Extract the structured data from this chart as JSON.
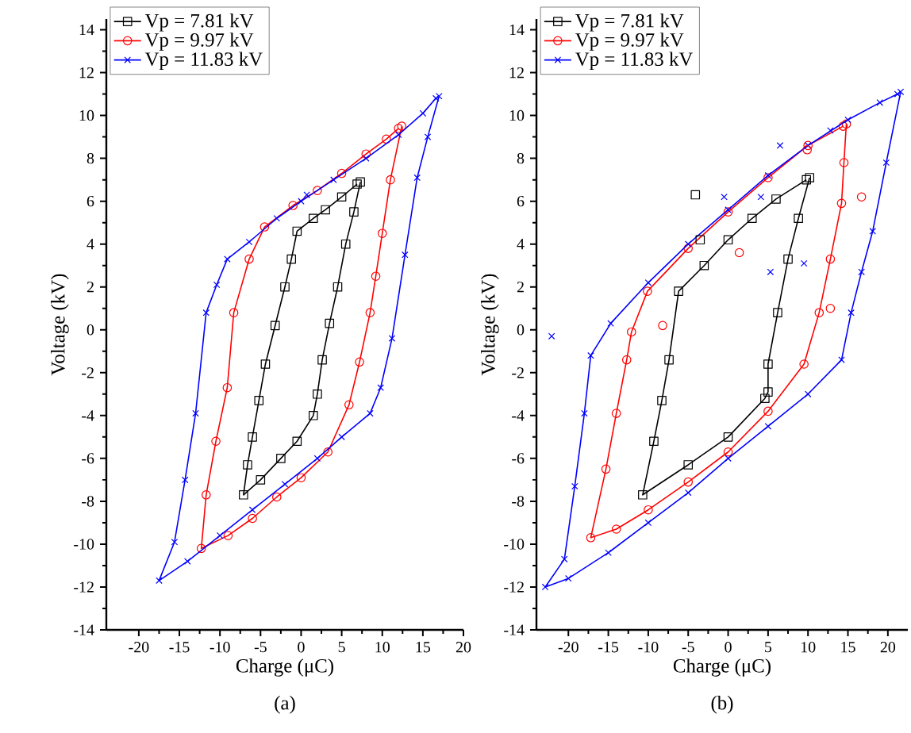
{
  "chart_data": [
    {
      "type": "line",
      "xlabel": "Charge (μC)",
      "ylabel": "Voltage (kV)",
      "annotations": [
        "(a)"
      ],
      "legend": "top left",
      "xlim": [
        -24,
        20
      ],
      "ylim": [
        -14,
        14.5
      ],
      "xticks": [
        -20,
        -15,
        -10,
        -5,
        0,
        5,
        10,
        15,
        20
      ],
      "yticks": [
        -14,
        -12,
        -10,
        -8,
        -6,
        -4,
        -2,
        0,
        2,
        4,
        6,
        8,
        10,
        12,
        14
      ],
      "series": [
        {
          "name": "Vp = 7.81 kV",
          "color": "#000000",
          "marker": "square",
          "x": [
            7.3,
            6.5,
            5.5,
            4.5,
            3.5,
            2.6,
            2,
            1.5,
            -0.5,
            -2.5,
            -5,
            -7.1,
            -6.6,
            -6,
            -5.2,
            -4.4,
            -3.2,
            -2,
            -1.2,
            -0.5,
            1.5,
            3,
            5,
            6.9
          ],
          "values": [
            6.9,
            5.5,
            4,
            2,
            0.3,
            -1.4,
            -3,
            -4,
            -5.2,
            -6,
            -7,
            -7.7,
            -6.3,
            -5,
            -3.3,
            -1.6,
            0.2,
            2,
            3.3,
            4.6,
            5.2,
            5.6,
            6.2,
            6.8
          ]
        },
        {
          "name": "Vp = 9.97 kV",
          "color": "#ff0000",
          "marker": "circle",
          "x": [
            12.4,
            11,
            10,
            9.2,
            8.5,
            7.2,
            5.9,
            3.3,
            0,
            -3,
            -6,
            -9,
            -12.3,
            -11.7,
            -10.5,
            -9.1,
            -8.3,
            -6.4,
            -4.5,
            -1,
            2,
            5,
            8,
            10.5,
            12
          ],
          "values": [
            9.5,
            7,
            4.5,
            2.5,
            0.8,
            -1.5,
            -3.5,
            -5.7,
            -6.9,
            -7.8,
            -8.8,
            -9.6,
            -10.2,
            -7.7,
            -5.2,
            -2.7,
            0.8,
            3.3,
            4.8,
            5.8,
            6.5,
            7.3,
            8.2,
            8.9,
            9.4
          ]
        },
        {
          "name": "Vp = 11.83 kV",
          "color": "#0000ff",
          "marker": "cross",
          "x": [
            17,
            15.6,
            14.3,
            12.8,
            11.2,
            9.8,
            8.5,
            5,
            2,
            -2,
            -6,
            -10,
            -14,
            -17.5,
            -15.6,
            -14.3,
            -13,
            -11.7,
            -10.4,
            -9.1,
            -6.4,
            -3,
            0,
            4,
            8,
            12,
            15,
            16.6
          ],
          "values": [
            10.9,
            9,
            7.1,
            3.5,
            -0.4,
            -2.7,
            -3.9,
            -5,
            -6,
            -7.2,
            -8.4,
            -9.6,
            -10.8,
            -11.7,
            -9.9,
            -7,
            -3.9,
            0.8,
            2.1,
            3.3,
            4.1,
            5.2,
            6,
            7,
            8,
            9.1,
            10.1,
            10.8
          ]
        },
        {
          "type": "scatter",
          "color": "#0000ff",
          "marker": "cross",
          "x": [
            0.7
          ],
          "values": [
            6.3
          ]
        }
      ]
    },
    {
      "type": "line",
      "xlabel": "Charge (μC)",
      "ylabel": "Voltage (kV)",
      "annotations": [
        "(b)"
      ],
      "legend": "top left",
      "xlim": [
        -24,
        22.5
      ],
      "ylim": [
        -14,
        14.5
      ],
      "xticks": [
        -20,
        -15,
        -10,
        -5,
        0,
        5,
        10,
        15,
        20
      ],
      "yticks": [
        -14,
        -12,
        -10,
        -8,
        -6,
        -4,
        -2,
        0,
        2,
        4,
        6,
        8,
        10,
        12,
        14
      ],
      "series": [
        {
          "name": "Vp = 7.81 kV",
          "color": "#000000",
          "marker": "square",
          "x": [
            10.2,
            8.8,
            7.5,
            6.2,
            5,
            5,
            4.6,
            0,
            -5,
            -10.7,
            -9.3,
            -8.3,
            -7.4,
            -6.2,
            -3,
            0,
            3,
            6,
            9.8
          ],
          "values": [
            7.1,
            5.2,
            3.3,
            0.8,
            -1.6,
            -2.9,
            -3.2,
            -5,
            -6.3,
            -7.7,
            -5.2,
            -3.3,
            -1.4,
            1.8,
            3,
            4.2,
            5.2,
            6.1,
            7
          ]
        },
        {
          "name": "Vp = 9.97 kV",
          "color": "#ff0000",
          "marker": "circle",
          "x": [
            14.8,
            14.5,
            14.2,
            12.8,
            11.4,
            9.5,
            5,
            0,
            -5,
            -10,
            -14,
            -17.2,
            -15.3,
            -14,
            -12.7,
            -12.1,
            -10.1,
            -5,
            0,
            5,
            10,
            14.4
          ],
          "values": [
            9.6,
            7.8,
            5.9,
            3.3,
            0.8,
            -1.6,
            -3.8,
            -5.7,
            -7.1,
            -8.4,
            -9.3,
            -9.7,
            -6.5,
            -3.9,
            -1.4,
            -0.1,
            1.8,
            3.8,
            5.5,
            7.1,
            8.6,
            9.5
          ]
        },
        {
          "name": "Vp = 11.83 kV",
          "color": "#0000ff",
          "marker": "cross",
          "x": [
            21.6,
            19.8,
            18.1,
            16.7,
            15.4,
            14.2,
            10,
            5,
            0,
            -5,
            -10,
            -15,
            -20,
            -22.9,
            -20.5,
            -19.2,
            -18,
            -17.2,
            -14.7,
            -10,
            -5,
            0,
            5,
            10,
            15,
            19,
            21.2
          ],
          "values": [
            11.1,
            7.8,
            4.6,
            2.7,
            0.8,
            -1.4,
            -3,
            -4.5,
            -6,
            -7.6,
            -9,
            -10.4,
            -11.6,
            -12,
            -10.7,
            -7.3,
            -3.9,
            -1.2,
            0.3,
            2.2,
            4,
            5.6,
            7.2,
            8.6,
            9.8,
            10.6,
            11
          ]
        },
        {
          "type": "scatter",
          "color": "#000000",
          "marker": "square",
          "x": [
            -4.1,
            -3.5
          ],
          "values": [
            6.3,
            4.2
          ]
        },
        {
          "type": "scatter",
          "color": "#ff0000",
          "marker": "circle",
          "x": [
            -8.2,
            1.4,
            16.7,
            12.8,
            9.9
          ],
          "values": [
            0.2,
            3.6,
            6.2,
            1.0,
            8.4
          ]
        },
        {
          "type": "scatter",
          "color": "#0000ff",
          "marker": "cross",
          "x": [
            -22.1,
            6.5,
            12.8,
            -0.5,
            4.1,
            5.3,
            9.5
          ],
          "values": [
            -0.3,
            8.6,
            9.3,
            6.2,
            6.2,
            2.7,
            3.1
          ]
        }
      ]
    }
  ]
}
